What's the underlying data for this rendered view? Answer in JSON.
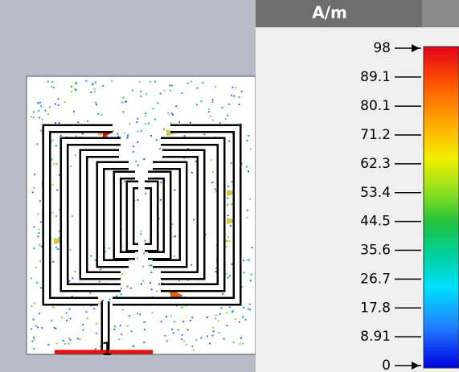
{
  "unit": "A/m",
  "colorbar": {
    "ticks": [
      98,
      89.1,
      80.1,
      71.2,
      62.3,
      53.4,
      44.5,
      35.6,
      26.7,
      17.8,
      8.91,
      0
    ]
  },
  "port_label": "1"
}
